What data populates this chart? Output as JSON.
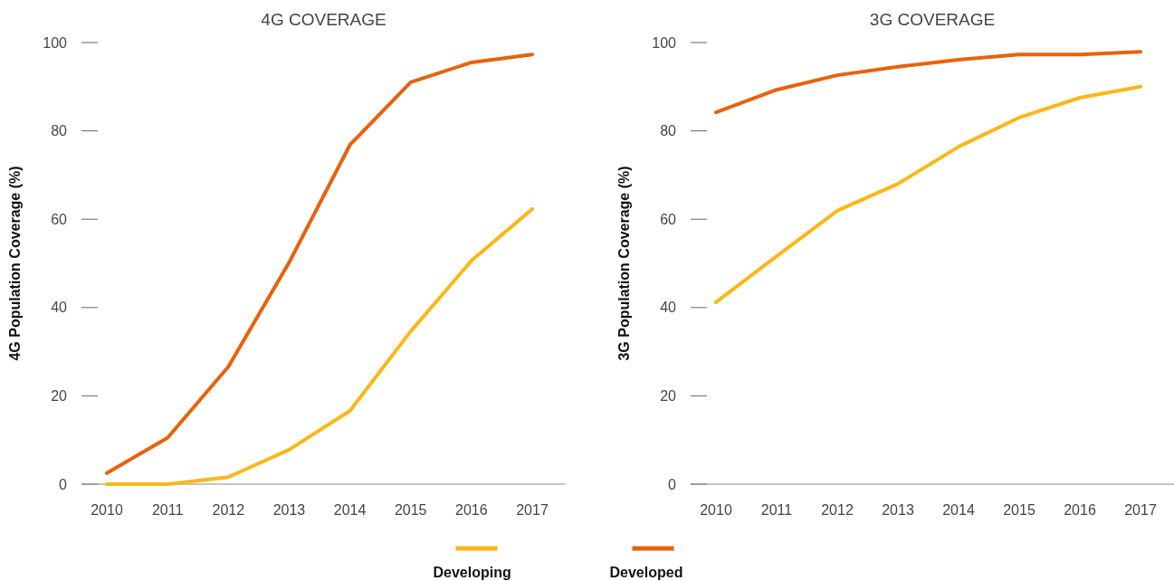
{
  "chart_data": [
    {
      "type": "line",
      "title": "4G COVERAGE",
      "ylabel": "4G Population Coverage (%)",
      "categories": [
        "2010",
        "2011",
        "2012",
        "2013",
        "2014",
        "2015",
        "2016",
        "2017"
      ],
      "ylim": [
        0,
        100
      ],
      "yticks": [
        0,
        20,
        40,
        60,
        80,
        100
      ],
      "legend": "bottom",
      "series": [
        {
          "name": "Developing",
          "color": "#fbb719",
          "values": [
            0,
            0,
            1.6,
            7.8,
            16.6,
            34.6,
            50.6,
            62.3
          ]
        },
        {
          "name": "Developed",
          "color": "#e8620c",
          "values": [
            2.5,
            10.5,
            26.6,
            50.2,
            76.8,
            91,
            95.5,
            97.3
          ]
        }
      ]
    },
    {
      "type": "line",
      "title": "3G COVERAGE",
      "ylabel": "3G Population Coverage (%)",
      "categories": [
        "2010",
        "2011",
        "2012",
        "2013",
        "2014",
        "2015",
        "2016",
        "2017"
      ],
      "ylim": [
        0,
        100
      ],
      "yticks": [
        0,
        20,
        40,
        60,
        80,
        100
      ],
      "series": [
        {
          "color": "#fbb719",
          "values": [
            41.2,
            51.6,
            61.9,
            68,
            76.4,
            83,
            87.5,
            90
          ]
        },
        {
          "color": "#e8620c",
          "values": [
            84.2,
            89.3,
            92.6,
            94.5,
            96.1,
            97.3,
            97.3,
            97.9
          ]
        }
      ]
    }
  ]
}
